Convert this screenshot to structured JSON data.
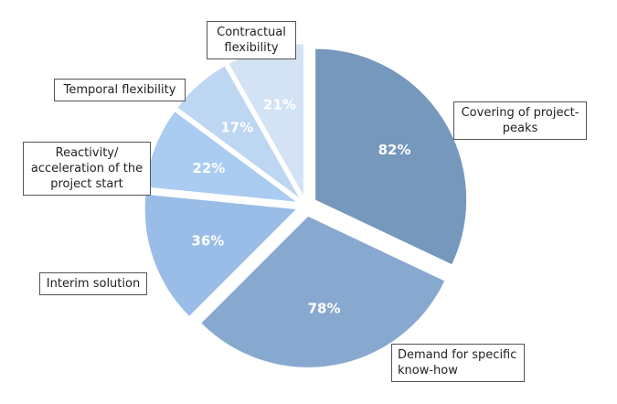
{
  "chart_data": {
    "type": "pie",
    "categories": [
      "Covering of project-peaks",
      "Demand for specific know-how",
      "Interim solution",
      "Reactivity/ acceleration of the project start",
      "Temporal flexibility",
      "Contractual flexibility"
    ],
    "values": [
      82,
      78,
      36,
      22,
      17,
      21
    ],
    "value_labels": [
      "82%",
      "78%",
      "36%",
      "22%",
      "17%",
      "21%"
    ],
    "colors": [
      "#7598bc",
      "#88a9cf",
      "#99bde6",
      "#a9ccf0",
      "#bdd6f2",
      "#d3e2f4"
    ],
    "legend": "callouts",
    "exploded": true
  }
}
